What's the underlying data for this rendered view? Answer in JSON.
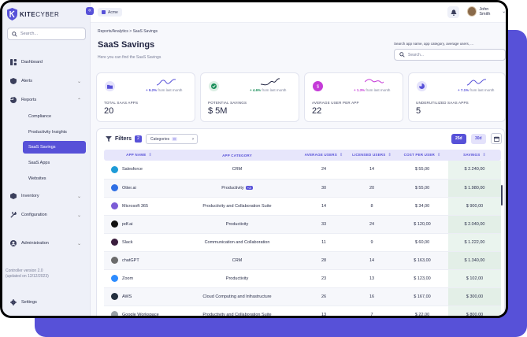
{
  "brand": {
    "name_bold": "KITE",
    "name_light": "CYBER",
    "collapse_glyph": "«"
  },
  "sidebar": {
    "search_placeholder": "Search...",
    "items": [
      {
        "label": "Dashboard",
        "icon": "dashboard-icon"
      },
      {
        "label": "Alerts",
        "icon": "shield-icon",
        "chevron": "⌄"
      },
      {
        "label": "Reports",
        "icon": "pie-chart-icon",
        "chevron": "⌃"
      },
      {
        "label": "Inventory",
        "icon": "box-icon",
        "chevron": "⌄"
      },
      {
        "label": "Configuration",
        "icon": "wrench-icon",
        "chevron": "⌄"
      },
      {
        "label": "Administration",
        "icon": "user-icon",
        "chevron": "⌄"
      }
    ],
    "sub_items": [
      {
        "label": "Compliance"
      },
      {
        "label": "Productivity Insights"
      },
      {
        "label": "SaaS Savings",
        "active": true
      },
      {
        "label": "SaaS Apps"
      },
      {
        "label": "Websites"
      }
    ],
    "version_line1": "Controller version 2.0",
    "version_line2": "(updated on 12/12/2023)",
    "settings_label": "Settings"
  },
  "topbar": {
    "workspace": "Acme",
    "user_name": "John Smith",
    "user_chevron": "⌄"
  },
  "page": {
    "breadcrumb": "Reports/Analytics  >  SaaS Savings",
    "title": "SaaS Savings",
    "subtitle": "Here you can find the SaaS Savings",
    "search_hint": "Search app name, app category, average users, ...",
    "search_placeholder": "Search..."
  },
  "cards": [
    {
      "label": "TOTAL SAAS APPS",
      "value": "20",
      "pct": "+ 9.2%",
      "trend_text": " from last month",
      "color": "#5751d8",
      "icon": "folder-icon"
    },
    {
      "label": "POTENTIAL SAVINGS",
      "value": "$ 5M",
      "pct": "+ 4.6%",
      "trend_text": " from last month",
      "color": "#1a8f5a",
      "icon": "check-badge-icon"
    },
    {
      "label": "AVERAGE USER PER APP",
      "value": "22",
      "pct": "+ 1.3%",
      "trend_text": " from last month",
      "color": "#c53bd8",
      "icon": "dollar-icon"
    },
    {
      "label": "UNDERUTILIZED SAAS APPS",
      "value": "5",
      "pct": "+ 7.1%",
      "trend_text": " from last month",
      "color": "#5751d8",
      "icon": "pie-icon"
    }
  ],
  "toolbar": {
    "filters_label": "Filters",
    "filters_count": "2",
    "categories_label": "Categories",
    "categories_count": "0",
    "period_active": "25d",
    "period_other": "30d"
  },
  "table": {
    "headers": [
      "APP NAME",
      "APP CATEGORY",
      "AVERAGE USERS",
      "LICENSED USERS",
      "COST PER USER",
      "SAVINGS"
    ],
    "sort_glyph": "⇕",
    "rows": [
      {
        "name": "Salesforce",
        "category": "CRM",
        "tag": "",
        "avg": "24",
        "lic": "14",
        "cost": "$ 55,00",
        "savings": "$ 2.240,00",
        "logo": "#1e9bd7"
      },
      {
        "name": "Otter.ai",
        "category": "Productivity",
        "tag": "+2",
        "avg": "30",
        "lic": "20",
        "cost": "$ 55,00",
        "savings": "$ 1.980,00",
        "logo": "#2f6fe4"
      },
      {
        "name": "Microsoft 365",
        "category": "Productivity and Collaboration Suite",
        "tag": "",
        "avg": "14",
        "lic": "8",
        "cost": "$ 34,00",
        "savings": "$ 900,00",
        "logo": "#7b5cd6"
      },
      {
        "name": "pdf.ai",
        "category": "Productivity",
        "tag": "",
        "avg": "33",
        "lic": "24",
        "cost": "$ 120,00",
        "savings": "$ 2.040,00",
        "logo": "#111111"
      },
      {
        "name": "Slack",
        "category": "Communication and Collaboration",
        "tag": "",
        "avg": "11",
        "lic": "9",
        "cost": "$ 60,00",
        "savings": "$ 1.222,00",
        "logo": "#3a1d3d"
      },
      {
        "name": "chatGPT",
        "category": "CRM",
        "tag": "",
        "avg": "28",
        "lic": "14",
        "cost": "$ 163,00",
        "savings": "$ 1.340,00",
        "logo": "#6b6b6b"
      },
      {
        "name": "Zoom",
        "category": "Productivity",
        "tag": "",
        "avg": "23",
        "lic": "13",
        "cost": "$ 123,00",
        "savings": "$ 102,00",
        "logo": "#2d8cff"
      },
      {
        "name": "AWS",
        "category": "Cloud Computing and Infrastructure",
        "tag": "",
        "avg": "26",
        "lic": "16",
        "cost": "$ 167,00",
        "savings": "$ 300,00",
        "logo": "#232f3e"
      },
      {
        "name": "Google Workspace",
        "category": "Productivity and Collaboration Suite",
        "tag": "",
        "avg": "13",
        "lic": "7",
        "cost": "$ 22,00",
        "savings": "$ 800,00",
        "logo": "#9aa0a6"
      }
    ]
  }
}
